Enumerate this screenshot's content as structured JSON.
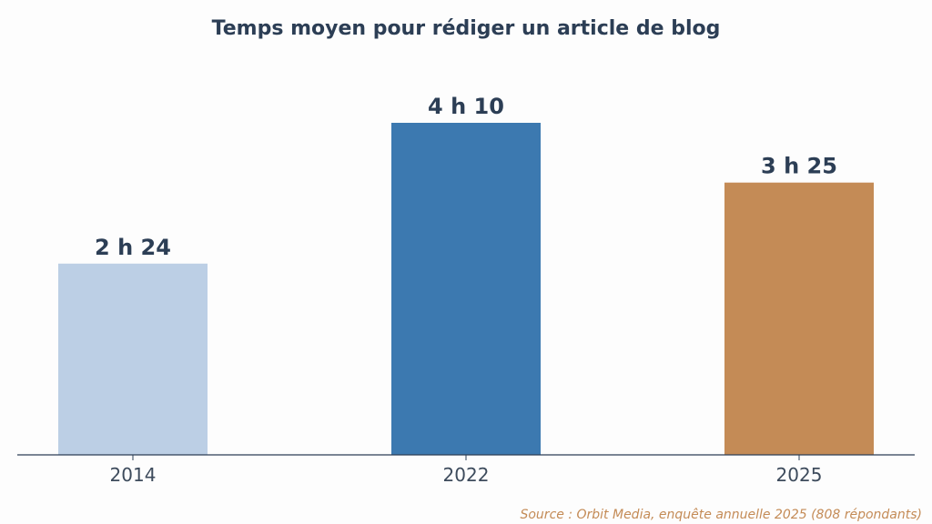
{
  "chart_data": {
    "type": "bar",
    "title": "Temps moyen pour rédiger un article de blog",
    "categories": [
      "2014",
      "2022",
      "2025"
    ],
    "values": [
      144,
      250,
      205
    ],
    "value_unit": "minutes",
    "data_labels": [
      "2 h 24",
      "4 h 10",
      "3 h 25"
    ],
    "ylim": [
      0,
      300
    ],
    "xlabel": "",
    "ylabel": "",
    "grid": false,
    "legend": "none",
    "colors": [
      "#bccfe5",
      "#3c79b0",
      "#c48b56"
    ],
    "source": "Source : Orbit Media, enquête annuelle 2025 (808 répondants)"
  },
  "style": {
    "text_color": "#2c3e55",
    "axis_color": "#2c3e55",
    "source_color": "#c48b56",
    "background": "#fdfdfd"
  }
}
